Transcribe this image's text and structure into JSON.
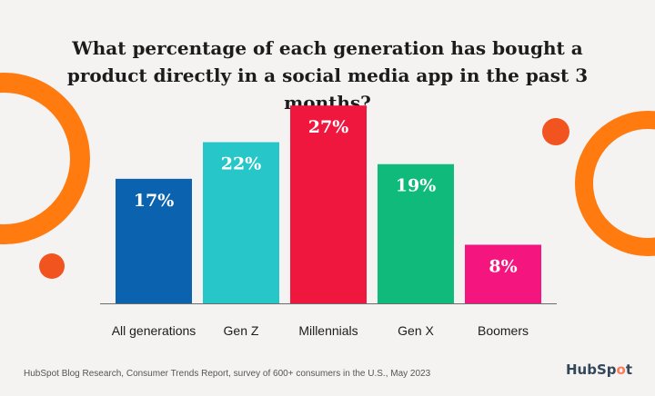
{
  "chart_data": {
    "type": "bar",
    "title": "What percentage of each generation has bought a product directly in a social media app in the past 3 months?",
    "categories": [
      "All generations",
      "Gen Z",
      "Millennials",
      "Gen X",
      "Boomers"
    ],
    "values": [
      17,
      22,
      27,
      19,
      8
    ],
    "value_labels": [
      "17%",
      "22%",
      "27%",
      "19%",
      "8%"
    ],
    "ylim": [
      0,
      30
    ],
    "grid": false,
    "legend": "none",
    "bar_colors": [
      "#0b63b0",
      "#26c6c9",
      "#f0173f",
      "#0fba7a",
      "#f4157e"
    ]
  },
  "footer": {
    "source": "HubSpot Blog Research, Consumer Trends Report, survey of 600+ consumers in the U.S., May 2023"
  },
  "logo": {
    "text_before": "HubSp",
    "text_o": "o",
    "text_after": "t"
  },
  "colors": {
    "background": "#f4f3f2",
    "accent_orange": "#ff7a0f",
    "accent_red": "#f2541f",
    "axis": "#6b6b6b"
  }
}
